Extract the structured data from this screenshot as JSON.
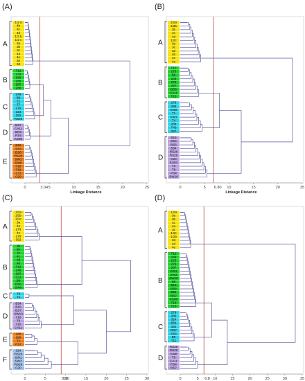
{
  "figure": {
    "colors": {
      "yellow": "#f6e20c",
      "green": "#1fd22f",
      "cyan": "#2fd3e6",
      "purple": "#b9a2e0",
      "orange": "#e87d1a",
      "blue": "#9dbbe6",
      "link": "#5a5a9e",
      "cut_line": "#b03030"
    }
  },
  "chart_data": [
    {
      "panel": "(A)",
      "type": "dendrogram",
      "xlabel": "Linkage Distance",
      "xlim": [
        0,
        25
      ],
      "xticks": [
        0,
        5,
        10,
        15,
        20,
        25
      ],
      "cut_label": "3.04",
      "cut_value": 3.04,
      "groups": [
        {
          "name": "A",
          "color": "yellow",
          "leaves": [
            "1/2 a",
            "4b",
            "4c",
            "4d",
            "1/2 b",
            "1/2 c",
            "3a",
            "3b",
            "3c",
            "4a",
            "4e",
            "3e",
            "3d"
          ]
        },
        {
          "name": "B",
          "color": "green",
          "leaves": [
            "T12",
            "273",
            "SW",
            "286",
            "287",
            "288"
          ]
        },
        {
          "name": "C",
          "color": "cyan",
          "leaves": [
            "249",
            "B9",
            "T1",
            "T7",
            "279",
            "324",
            "352",
            "RS29"
          ]
        },
        {
          "name": "D",
          "color": "purple",
          "leaves": [
            "BS7",
            "CA11",
            "BK9",
            "PS4",
            "KS08"
          ]
        },
        {
          "name": "E",
          "color": "orange",
          "leaves": [
            "B15",
            "SS4",
            "BS6",
            "RS28",
            "SW1",
            "SW9",
            "T18",
            "T18",
            "C11",
            "C20"
          ]
        }
      ],
      "merges": [
        {
          "group": "A",
          "height": 1.6
        },
        {
          "group": "B",
          "height": 1.0
        },
        {
          "group": "C",
          "height": 2.0
        },
        {
          "group": "D",
          "height": 1.1
        },
        {
          "group": "E",
          "height": 2.3
        },
        {
          "join": [
            "B",
            "C"
          ],
          "height": 3.8
        },
        {
          "join": [
            "B+C",
            "D"
          ],
          "height": 5.3
        },
        {
          "join": [
            "B+C+D",
            "E"
          ],
          "height": 8.9
        },
        {
          "join": [
            "A",
            "B+C+D+E"
          ],
          "height": 21.5
        }
      ]
    },
    {
      "panel": "(B)",
      "type": "dendrogram",
      "xlabel": "Linkage Distance",
      "xlim": [
        0,
        25
      ],
      "xticks": [
        0,
        5,
        10,
        15,
        20,
        25
      ],
      "cut_label": "6.80",
      "cut_value": 6.8,
      "groups": [
        {
          "name": "A",
          "color": "yellow",
          "leaves": [
            "1/2a",
            "1/2b",
            "3b",
            "4c",
            "4d",
            "1/2c",
            "3a",
            "3c",
            "3d",
            "4b",
            "4e",
            "4a"
          ]
        },
        {
          "name": "B",
          "color": "green",
          "leaves": [
            "T12",
            "273",
            "B9",
            "249",
            "279",
            "287",
            "BS6",
            "CA11",
            "T18"
          ]
        },
        {
          "name": "C",
          "color": "cyan",
          "leaves": [
            "279",
            "286",
            "SW9",
            "T1",
            "SW1",
            "T4",
            "288",
            "T40",
            "287"
          ]
        },
        {
          "name": "D",
          "color": "purple",
          "leaves": [
            "B15",
            "SS4",
            "BS6",
            "B54",
            "RS26",
            "RS29",
            "C20",
            "KS03",
            "T3",
            "T8",
            "PS4",
            "SW10"
          ]
        }
      ],
      "merges": [
        {
          "group": "A",
          "height": 4.2
        },
        {
          "group": "B",
          "height": 3.8
        },
        {
          "group": "C",
          "height": 4.5
        },
        {
          "group": "D",
          "height": 5.5
        },
        {
          "join": [
            "B",
            "C"
          ],
          "height": 8.0
        },
        {
          "join": [
            "B+C",
            "D"
          ],
          "height": 12.5
        },
        {
          "join": [
            "A",
            "B+C+D"
          ],
          "height": 23.0
        }
      ]
    },
    {
      "panel": "(C)",
      "type": "dendrogram",
      "xlabel": "Linkage Distance",
      "xlim": [
        0,
        30
      ],
      "xticks": [
        0,
        5,
        10,
        15,
        20,
        25,
        30
      ],
      "cut_label": "8.90",
      "cut_value": 8.9,
      "groups": [
        {
          "name": "A",
          "color": "yellow",
          "leaves": [
            "1/2a",
            "1/2b",
            "1/2c",
            "3a",
            "4a",
            "273",
            "4e",
            "279",
            "352"
          ]
        },
        {
          "name": "B",
          "color": "green",
          "leaves": [
            "3b",
            "4b",
            "3c",
            "4c",
            "3d",
            "4d",
            "T12",
            "249",
            "287",
            "C11",
            "B9",
            "BS6",
            "SW9"
          ]
        },
        {
          "name": "C",
          "color": "cyan",
          "leaves": [
            "T8",
            "T4"
          ]
        },
        {
          "name": "D",
          "color": "purple",
          "leaves": [
            "B54",
            "B15",
            "BS7",
            "SW10",
            "T18",
            "T9",
            "T10",
            "CA11"
          ]
        },
        {
          "name": "E",
          "color": "orange",
          "leaves": [
            "288",
            "286",
            "T1",
            "RS7"
          ]
        },
        {
          "name": "F",
          "color": "blue",
          "leaves": [
            "324",
            "RS26",
            "SW1",
            "SW3",
            "RS29",
            "C20"
          ]
        }
      ],
      "merges": [
        {
          "group": "A",
          "height": 3.5
        },
        {
          "group": "B",
          "height": 3.0
        },
        {
          "group": "C",
          "height": 1.0
        },
        {
          "group": "D",
          "height": 4.0
        },
        {
          "group": "E",
          "height": 3.0
        },
        {
          "group": "F",
          "height": 6.5
        },
        {
          "join": [
            "A",
            "B"
          ],
          "height": 14.0
        },
        {
          "join": [
            "C",
            "D"
          ],
          "height": 12.0
        },
        {
          "join": [
            "E",
            "F"
          ],
          "height": 13.0
        },
        {
          "join": [
            "C+D",
            "E+F"
          ],
          "height": 20.0
        },
        {
          "join": [
            "A+B",
            "C+D+E+F"
          ],
          "height": 26.0
        }
      ]
    },
    {
      "panel": "(D)",
      "type": "dendrogram",
      "xlabel": "Linkage Distance",
      "xlim": [
        0,
        35
      ],
      "xticks": [
        0,
        5,
        10,
        15,
        20,
        25,
        30,
        35
      ],
      "cut_label": "6.8",
      "cut_value": 6.8,
      "groups": [
        {
          "name": "A",
          "color": "yellow",
          "leaves": [
            "1/2a",
            "3a",
            "3b",
            "4c",
            "4a",
            "3c",
            "1/2c",
            "1/2b",
            "3d",
            "4d",
            "4e"
          ]
        },
        {
          "name": "B",
          "color": "green",
          "leaves": [
            "T12",
            "249",
            "273",
            "279",
            "287",
            "SW1",
            "SW3",
            "SW10",
            "B9",
            "B15",
            "BS6",
            "B54",
            "BS7",
            "KS06",
            "T18",
            "T18"
          ]
        },
        {
          "name": "C",
          "color": "cyan",
          "leaves": [
            "279",
            "286",
            "324",
            "B54",
            "352",
            "RS7",
            "SS4",
            "B8",
            "T11"
          ]
        },
        {
          "name": "D",
          "color": "purple",
          "leaves": [
            "RS26",
            "RS29",
            "SW8",
            "T9",
            "CA11",
            "PS4",
            "BS7"
          ]
        }
      ],
      "merges": [
        {
          "group": "A",
          "height": 3.0
        },
        {
          "group": "B",
          "height": 4.5
        },
        {
          "group": "C",
          "height": 4.0
        },
        {
          "group": "D",
          "height": 5.0
        },
        {
          "join": [
            "B",
            "C"
          ],
          "height": 9.0
        },
        {
          "join": [
            "B+C",
            "D"
          ],
          "height": 13.5
        },
        {
          "join": [
            "A",
            "B+C+D"
          ],
          "height": 33.0
        }
      ]
    }
  ]
}
